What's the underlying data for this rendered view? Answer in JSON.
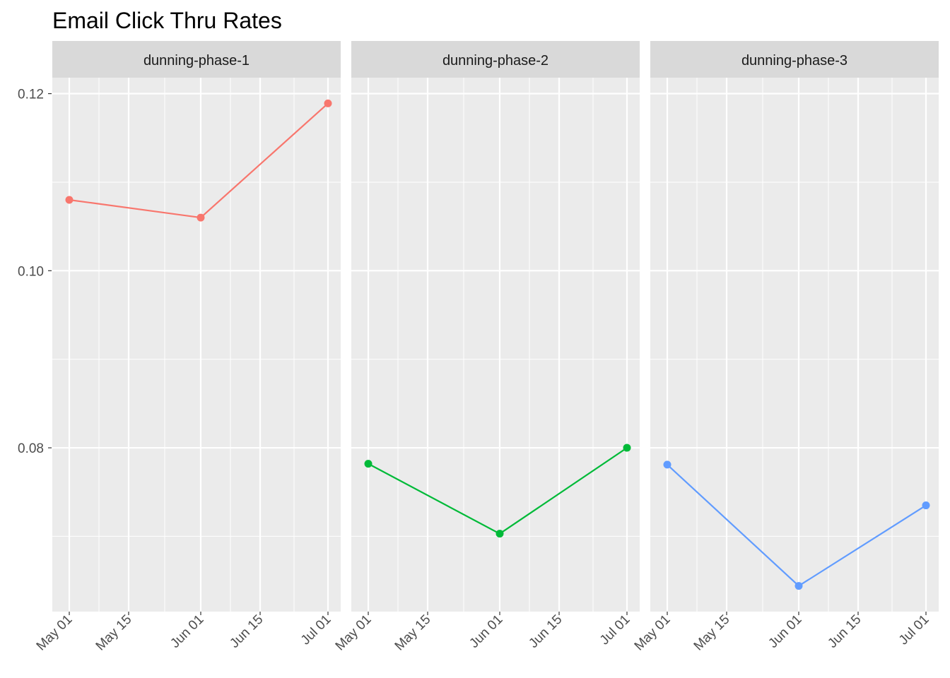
{
  "chart_data": {
    "type": "line",
    "title": "Email Click Thru Rates",
    "xlabel": "",
    "ylabel": "",
    "ylim": [
      0.0615,
      0.1218
    ],
    "xlim": [
      "2024-04-27",
      "2024-07-04"
    ],
    "y_ticks": [
      0.08,
      0.1,
      0.12
    ],
    "y_tick_labels": [
      "0.08",
      "0.10",
      "0.12"
    ],
    "x_ticks": [
      "2024-05-01",
      "2024-05-15",
      "2024-06-01",
      "2024-06-15",
      "2024-07-01"
    ],
    "x_tick_labels": [
      "May 01",
      "May 15",
      "Jun 01",
      "Jun 15",
      "Jul 01"
    ],
    "grid": true,
    "legend": "none",
    "panels": [
      {
        "name": "dunning-phase-1",
        "color": "#F8766D",
        "x": [
          "2024-05-01",
          "2024-06-01",
          "2024-07-01"
        ],
        "values": [
          0.108,
          0.106,
          0.1189
        ]
      },
      {
        "name": "dunning-phase-2",
        "color": "#00BA38",
        "x": [
          "2024-05-01",
          "2024-06-01",
          "2024-07-01"
        ],
        "values": [
          0.0782,
          0.0703,
          0.08
        ]
      },
      {
        "name": "dunning-phase-3",
        "color": "#619CFF",
        "x": [
          "2024-05-01",
          "2024-06-01",
          "2024-07-01"
        ],
        "values": [
          0.0781,
          0.0644,
          0.0735
        ]
      }
    ]
  }
}
